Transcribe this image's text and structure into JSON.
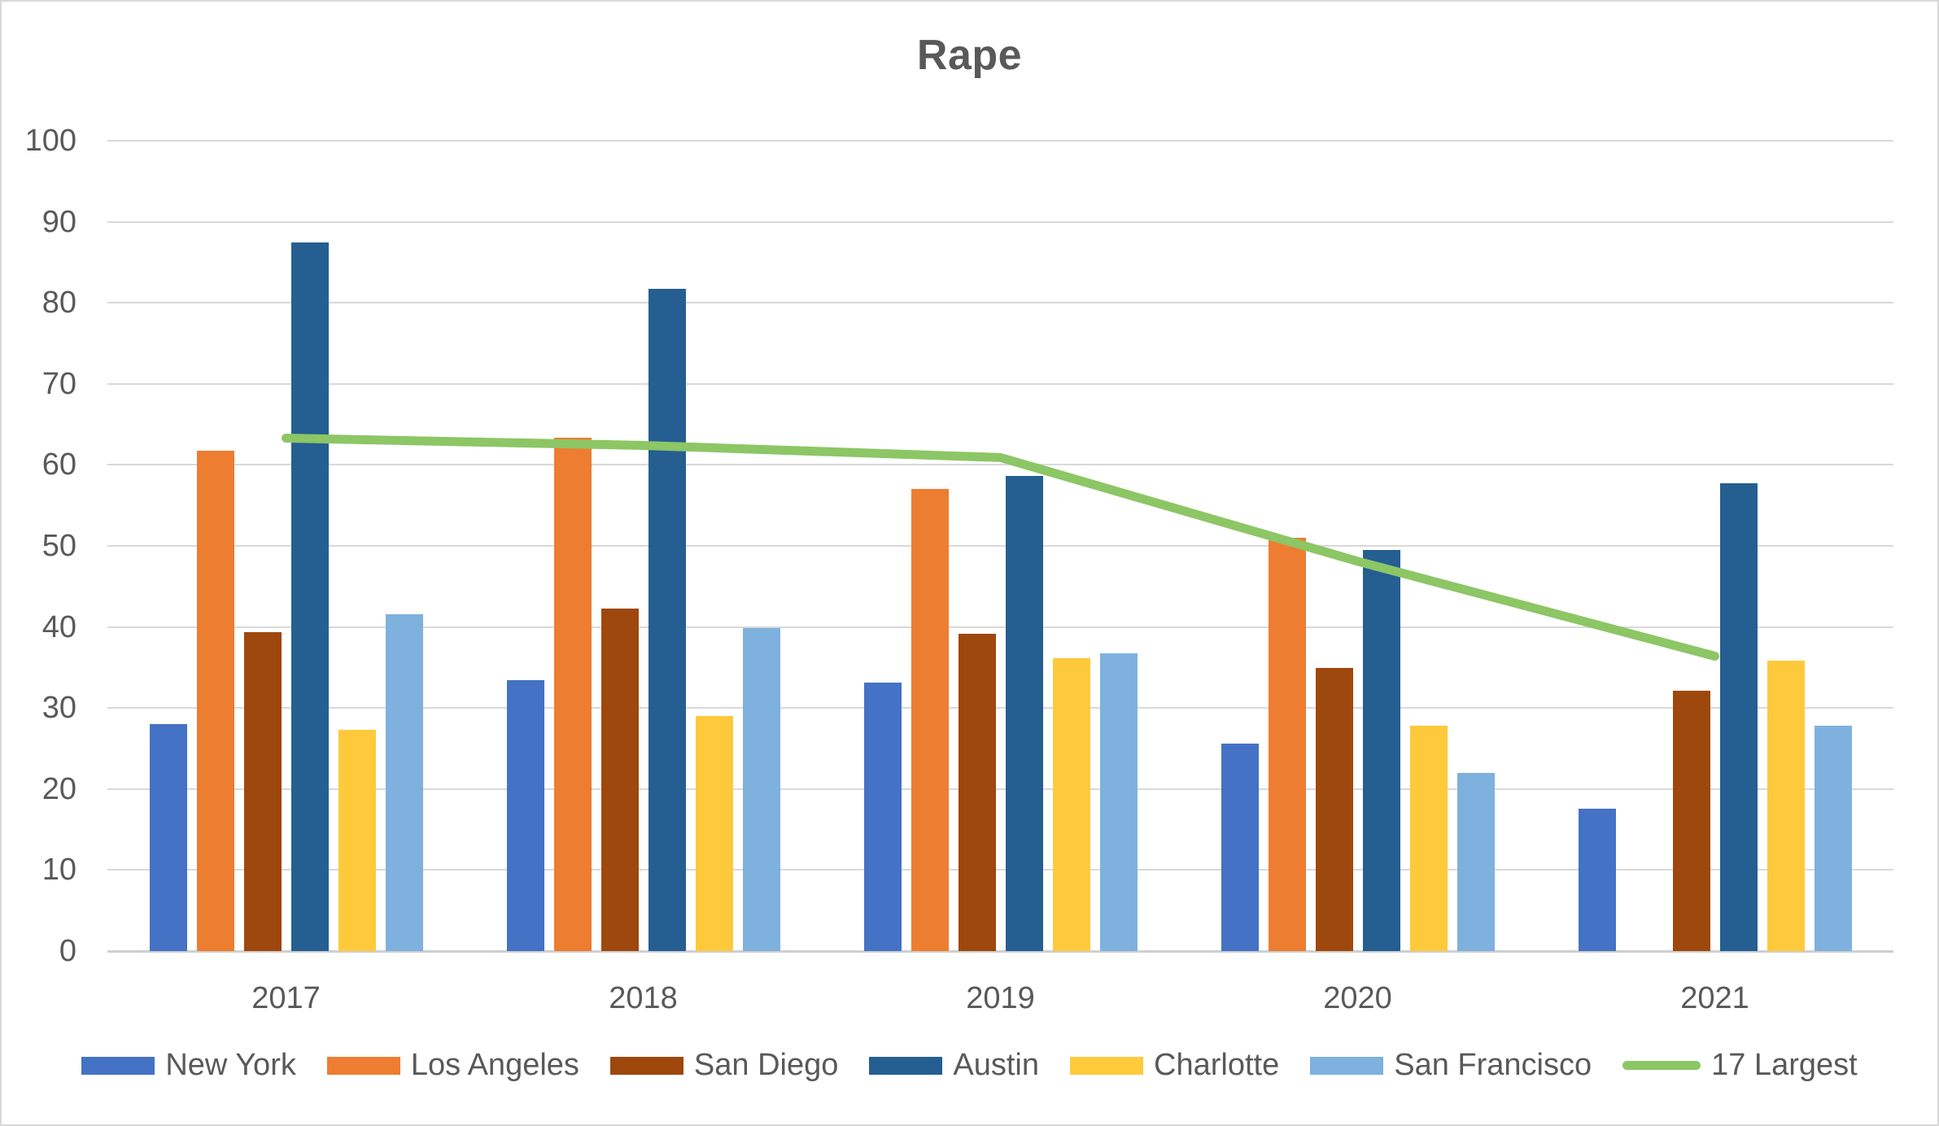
{
  "chart_data": {
    "type": "bar",
    "title": "Rape",
    "categories": [
      "2017",
      "2018",
      "2019",
      "2020",
      "2021"
    ],
    "series": [
      {
        "name": "New York",
        "color": "#4472C4",
        "values": [
          28.0,
          33.4,
          33.1,
          25.6,
          17.6
        ]
      },
      {
        "name": "Los Angeles",
        "color": "#ED7D31",
        "values": [
          61.7,
          63.4,
          57.0,
          51.0,
          null
        ]
      },
      {
        "name": "San Diego",
        "color": "#9E480E",
        "values": [
          39.4,
          42.3,
          39.2,
          34.9,
          32.1
        ]
      },
      {
        "name": "Austin",
        "color": "#255E91",
        "values": [
          87.4,
          81.7,
          58.6,
          49.5,
          57.7
        ]
      },
      {
        "name": "Charlotte",
        "color": "#FFC93C",
        "values": [
          27.3,
          29.0,
          36.1,
          27.8,
          35.8
        ]
      },
      {
        "name": "San Francisco",
        "color": "#7EB1DD",
        "values": [
          41.6,
          39.9,
          36.7,
          22.0,
          27.8
        ]
      }
    ],
    "line_series": {
      "name": "17 Largest",
      "color": "#8CC665",
      "values": [
        63.3,
        62.4,
        60.9,
        48.1,
        36.4
      ]
    },
    "xlabel": "",
    "ylabel": "",
    "ylim": [
      0,
      100
    ],
    "y_ticks": [
      0,
      10,
      20,
      30,
      40,
      50,
      60,
      70,
      80,
      90,
      100
    ],
    "grid": true,
    "legend_position": "bottom"
  },
  "colors": {
    "text": "#595959",
    "gridline": "#D9D9D9",
    "axis_line": "#CFCFCF",
    "background": "#FFFFFF"
  }
}
